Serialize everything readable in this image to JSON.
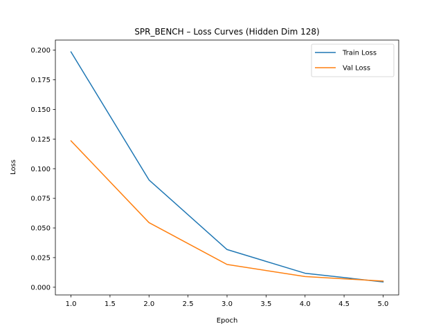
{
  "chart_data": {
    "type": "line",
    "title": "SPR_BENCH – Loss Curves (Hidden Dim 128)",
    "xlabel": "Epoch",
    "ylabel": "Loss",
    "x": [
      1.0,
      2.0,
      3.0,
      4.0,
      5.0
    ],
    "series": [
      {
        "name": "Train Loss",
        "color": "#1f77b4",
        "values": [
          0.1985,
          0.0905,
          0.0318,
          0.0118,
          0.0045
        ]
      },
      {
        "name": "Val Loss",
        "color": "#ff7f0e",
        "values": [
          0.1235,
          0.0545,
          0.0192,
          0.009,
          0.0052
        ]
      }
    ],
    "xlim": [
      0.8,
      5.2
    ],
    "ylim": [
      -0.0065,
      0.2085
    ],
    "xticks": [
      "1.0",
      "1.5",
      "2.0",
      "2.5",
      "3.0",
      "3.5",
      "4.0",
      "4.5",
      "5.0"
    ],
    "yticks": [
      "0.000",
      "0.025",
      "0.050",
      "0.075",
      "0.100",
      "0.125",
      "0.150",
      "0.175",
      "0.200"
    ],
    "grid": false,
    "legend_position": "top-right"
  }
}
